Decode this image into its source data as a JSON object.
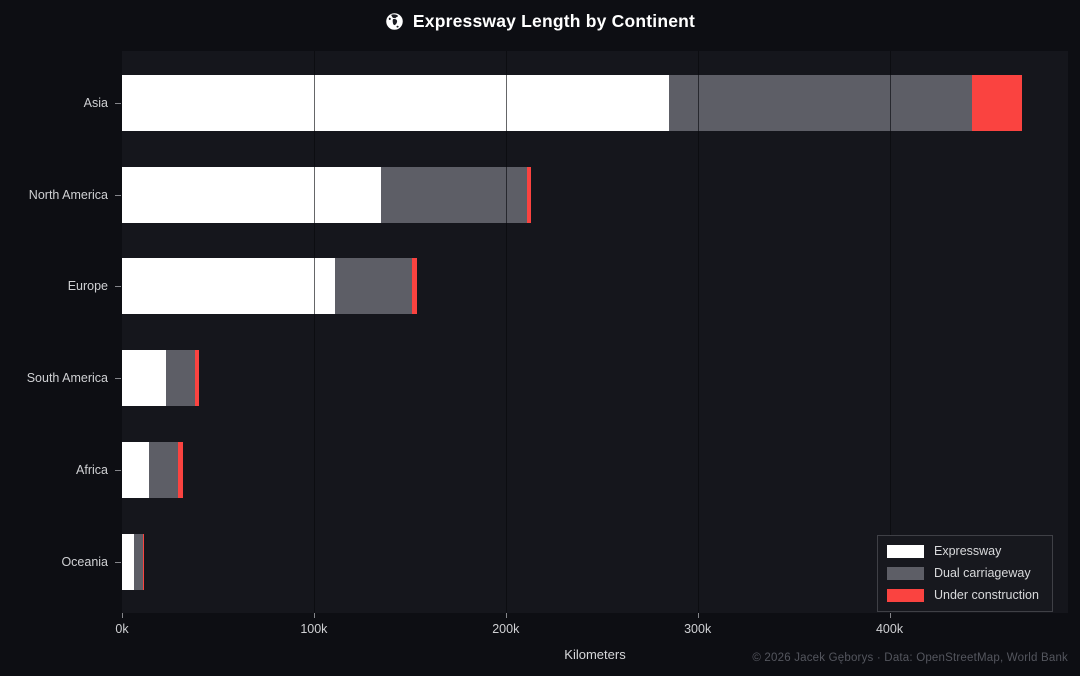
{
  "title": "Expressway Length by Continent",
  "title_icon": "globe-icon",
  "footer": "© 2026 Jacek Gęborys  ·  Data: OpenStreetMap, World Bank",
  "colors": {
    "background": "#0d0e13",
    "plot_background": "#15161c",
    "expressway": "#ffffff",
    "dual_carriageway": "#5d5e66",
    "under_construction": "#fa4340",
    "text": "#cfd0d3",
    "footer_text": "#54565e"
  },
  "chart_data": {
    "type": "bar",
    "orientation": "horizontal",
    "stacked": true,
    "title": "Expressway Length by Continent",
    "xlabel": "Kilometers",
    "ylabel": "",
    "categories": [
      "Asia",
      "North America",
      "Europe",
      "South America",
      "Africa",
      "Oceania"
    ],
    "series": [
      {
        "name": "Expressway",
        "color": "#ffffff",
        "values": [
          285000,
          135000,
          111000,
          23000,
          14000,
          6000
        ]
      },
      {
        "name": "Dual carriageway",
        "color": "#5d5e66",
        "values": [
          158000,
          76000,
          40000,
          15000,
          15000,
          5000
        ]
      },
      {
        "name": "Under construction",
        "color": "#fa4340",
        "values": [
          26000,
          2000,
          3000,
          2000,
          3000,
          500
        ]
      }
    ],
    "x_ticks": [
      "0k",
      "100k",
      "200k",
      "300k",
      "400k"
    ],
    "x_tick_values": [
      0,
      100000,
      200000,
      300000,
      400000
    ],
    "xlim": [
      0,
      493000
    ],
    "grid": true,
    "legend_position": "lower right"
  }
}
